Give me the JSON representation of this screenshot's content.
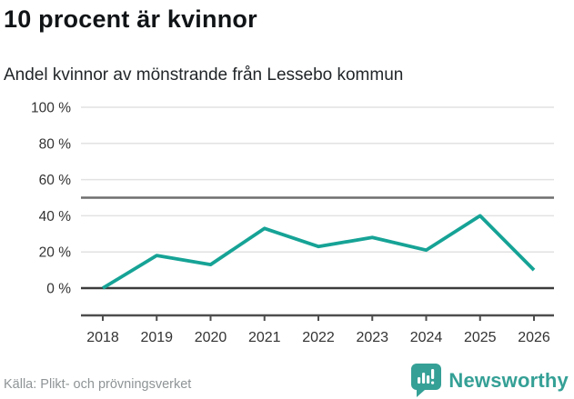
{
  "header": {
    "title": "10 procent är kvinnor",
    "subtitle": "Andel kvinnor av mönstrande från Lessebo kommun"
  },
  "chart_data": {
    "type": "line",
    "title": "10 procent är kvinnor",
    "subtitle": "Andel kvinnor av mönstrande från Lessebo kommun",
    "categories": [
      "2018",
      "2019",
      "2020",
      "2021",
      "2022",
      "2023",
      "2024",
      "2025",
      "2026"
    ],
    "values": [
      0,
      18,
      13,
      33,
      23,
      28,
      21,
      40,
      10
    ],
    "series_name": "Andel kvinnor av mönstrande",
    "xlabel": "",
    "ylabel": "",
    "ylim": [
      0,
      100
    ],
    "yticks": [
      0,
      20,
      40,
      60,
      80,
      100
    ],
    "ytick_labels": [
      "0 %",
      "20 %",
      "40 %",
      "60 %",
      "80 %",
      "100 %"
    ],
    "reference_line": 50,
    "grid": true,
    "legend_position": "none",
    "line_color": "#16a396"
  },
  "footer": {
    "source": "Källa: Plikt- och prövningsverket",
    "brand": "Newsworthy"
  },
  "colors": {
    "line": "#16a396",
    "brand_teal": "#35a096",
    "grid_light": "#e2e2e2",
    "zero_line": "#3c3c3c",
    "reference_line": "#6e6e6e",
    "axis": "#4d4d4d",
    "tick_label": "#333333",
    "source_text": "#8f9496"
  }
}
